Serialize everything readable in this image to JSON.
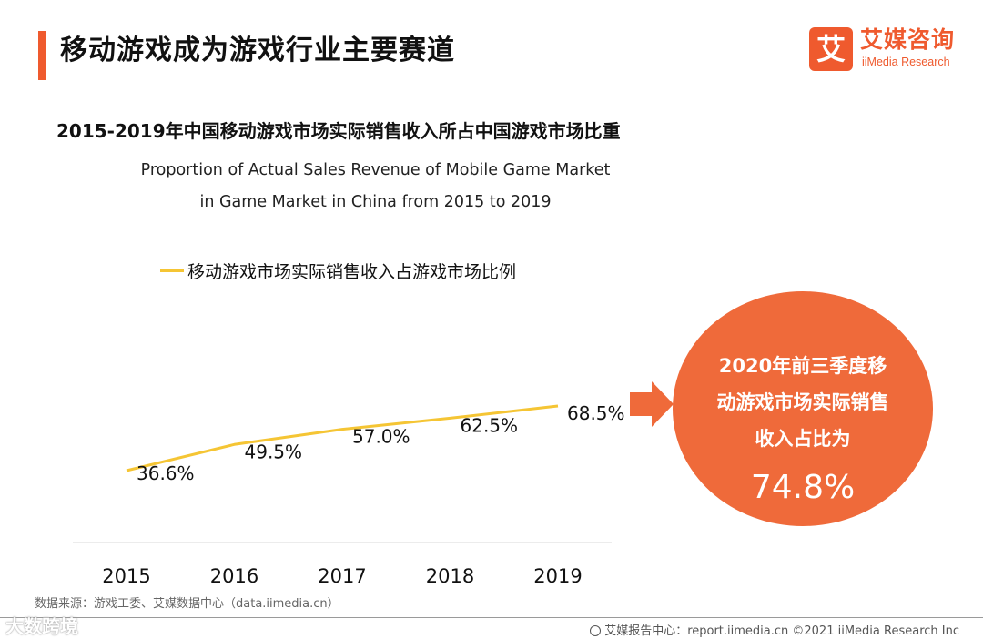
{
  "header": {
    "title": "移动游戏成为游戏行业主要赛道"
  },
  "logo": {
    "mark": "艾",
    "cn": "艾媒咨询",
    "en": "iiMedia Research"
  },
  "colors": {
    "accent": "#ef5a2e",
    "line": "#f5c534",
    "bubble": "#ef6a3a"
  },
  "chart_data": {
    "type": "line",
    "title": "2015-2019年中国移动游戏市场实际销售收入所占中国游戏市场比重",
    "subtitle_line1": "Proportion of Actual Sales Revenue of  Mobile Game Market",
    "subtitle_line2": "in  Game Market in China from 2015 to 2019",
    "categories": [
      "2015",
      "2016",
      "2017",
      "2018",
      "2019"
    ],
    "series": [
      {
        "name": "移动游戏市场实际销售收入占游戏市场比例",
        "values": [
          36.6,
          49.5,
          57.0,
          62.5,
          68.5
        ]
      }
    ],
    "data_labels": [
      "36.6%",
      "49.5%",
      "57.0%",
      "62.5%",
      "68.5%"
    ],
    "legend": "top-left",
    "grid": false
  },
  "callout": {
    "line1": "2020年前三季度移",
    "line2": "动游戏市场实际销售",
    "line3": "收入占比为",
    "value": "74.8%"
  },
  "source": "数据来源：游戏工委、艾媒数据中心（data.iimedia.cn）",
  "footer": "艾媒报告中心：report.iimedia.cn ©2021  iiMedia Research  Inc",
  "watermark": "大数跨境"
}
